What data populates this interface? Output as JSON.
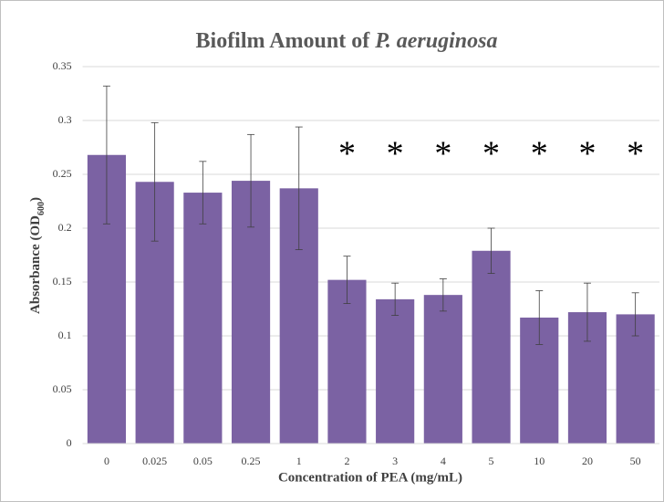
{
  "chart_data": {
    "type": "bar",
    "title_parts": [
      "Biofilm Amount of",
      "P. aeruginosa"
    ],
    "xlabel": "Concentration of PEA (mg/mL)",
    "ylabel_parts": [
      "Absorbance (OD",
      "600",
      ")"
    ],
    "categories": [
      "0",
      "0.025",
      "0.05",
      "0.25",
      "1",
      "2",
      "3",
      "4",
      "5",
      "10",
      "20",
      "50"
    ],
    "values": [
      0.268,
      0.243,
      0.233,
      0.244,
      0.237,
      0.152,
      0.134,
      0.138,
      0.179,
      0.117,
      0.122,
      0.12
    ],
    "errors": [
      0.064,
      0.055,
      0.029,
      0.043,
      0.057,
      0.022,
      0.015,
      0.015,
      0.021,
      0.025,
      0.027,
      0.02
    ],
    "significance_labels": [
      null,
      null,
      null,
      null,
      null,
      "*",
      "*",
      "*",
      "*",
      "*",
      "*",
      "*"
    ],
    "color": "#7b62a3",
    "ylim": [
      0,
      0.35
    ],
    "yticks": [
      0,
      0.05,
      0.1,
      0.15,
      0.2,
      0.25,
      0.3,
      0.35
    ],
    "grid": true
  }
}
